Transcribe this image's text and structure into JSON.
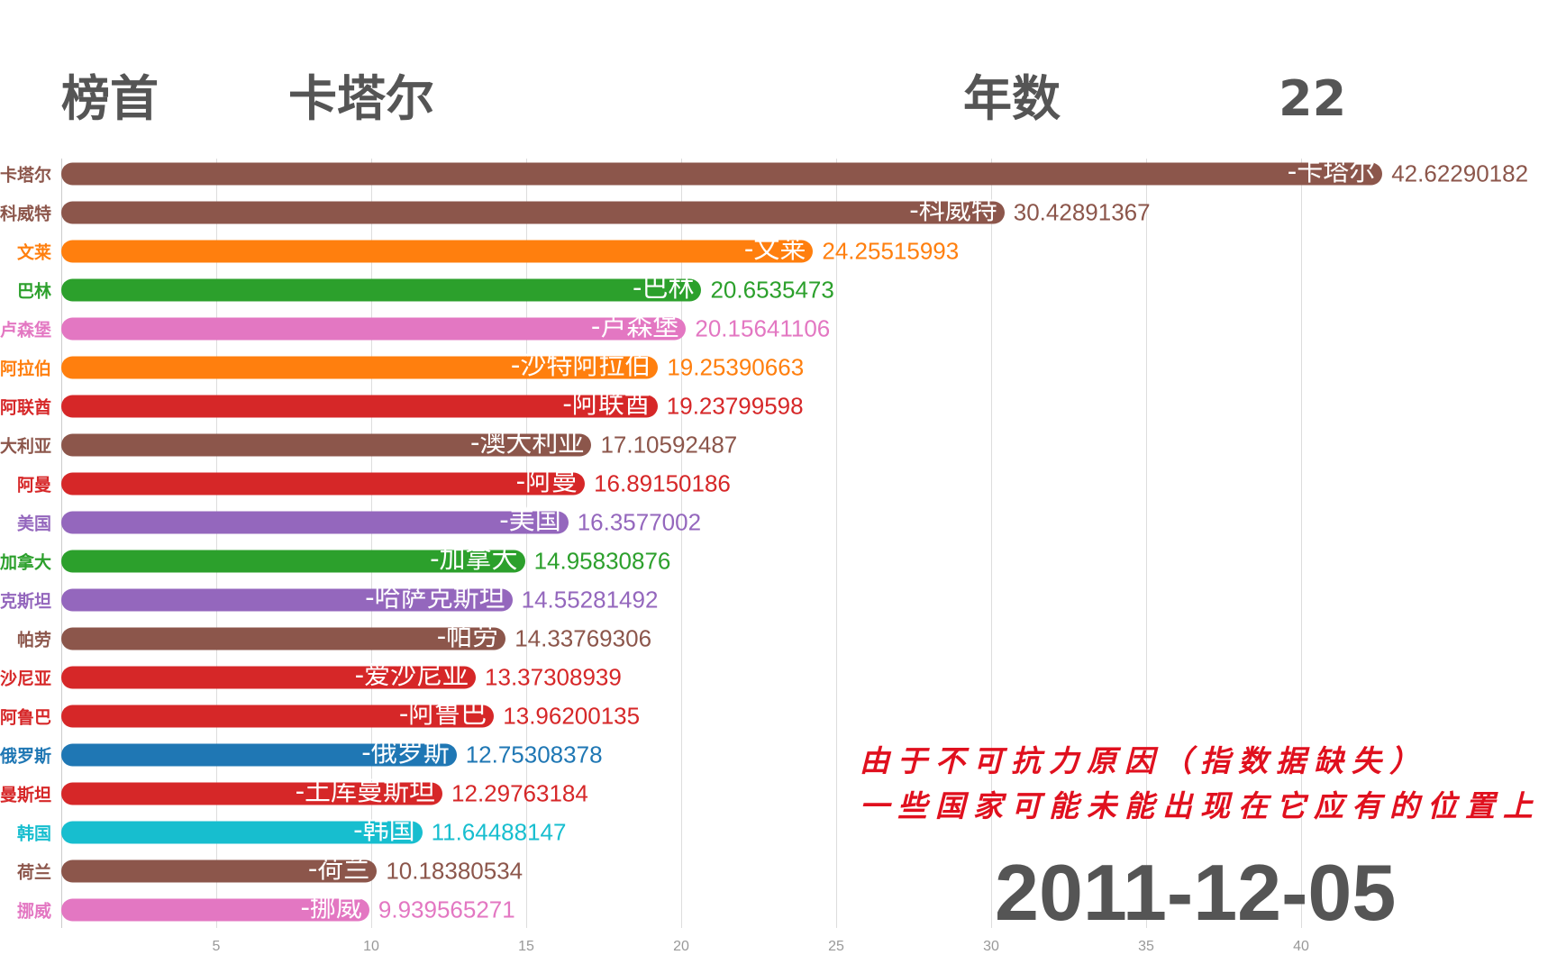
{
  "header": {
    "leader_label": "榜首",
    "leader_value": "卡塔尔",
    "year_label": "年数",
    "year_value": "22"
  },
  "note": {
    "line1": "由于不可抗力原因（指数据缺失）",
    "line2": "一些国家可能未能出现在它应有的位置上"
  },
  "date": "2011-12-05",
  "chart_data": {
    "type": "bar",
    "orientation": "horizontal",
    "xlim": [
      0,
      45
    ],
    "xticks": [
      5,
      10,
      15,
      20,
      25,
      30,
      35,
      40
    ],
    "grid": true,
    "categories": [
      "卡塔尔",
      "科威特",
      "文莱",
      "巴林",
      "卢森堡",
      "沙特阿拉伯",
      "阿联酋",
      "澳大利亚",
      "阿曼",
      "美国",
      "加拿大",
      "哈萨克斯坦",
      "帕劳",
      "爱沙尼亚",
      "阿鲁巴",
      "俄罗斯",
      "土库曼斯坦",
      "韩国",
      "荷兰",
      "挪威"
    ],
    "axis_labels": [
      "卡塔尔",
      "科威特",
      "文莱",
      "巴林",
      "卢森堡",
      "阿拉伯",
      "阿联酋",
      "大利亚",
      "阿曼",
      "美国",
      "加拿大",
      "克斯坦",
      "帕劳",
      "沙尼亚",
      "阿鲁巴",
      "俄罗斯",
      "曼斯坦",
      "韩国",
      "荷兰",
      "挪威"
    ],
    "bar_labels": [
      "-卡塔尔",
      "-科威特",
      "-文莱",
      "-巴林",
      "-卢森堡",
      "-沙特阿拉伯",
      "-阿联酋",
      "-澳大利亚",
      "-阿曼",
      "-美国",
      "-加拿大",
      "-哈萨克斯坦",
      "-帕劳",
      "-爱沙尼亚",
      "-阿鲁巴",
      "-俄罗斯",
      "-土库曼斯坦",
      "-韩国",
      "-荷兰",
      "-挪威"
    ],
    "values": [
      42.62290182,
      30.42891367,
      24.25515993,
      20.6535473,
      20.15641106,
      19.25390663,
      19.23799598,
      17.10592487,
      16.89150186,
      16.3577002,
      14.95830876,
      14.55281492,
      14.33769306,
      13.37308939,
      13.96200135,
      12.75308378,
      12.29763184,
      11.64488147,
      10.18380534,
      9.939565271
    ],
    "value_labels": [
      "42.62290182",
      "30.42891367",
      "24.25515993",
      "20.6535473",
      "20.15641106",
      "19.25390663",
      "19.23799598",
      "17.10592487",
      "16.89150186",
      "16.3577002",
      "14.95830876",
      "14.55281492",
      "14.33769306",
      "13.37308939",
      "13.96200135",
      "12.75308378",
      "12.29763184",
      "11.64488147",
      "10.18380534",
      "9.939565271"
    ],
    "colors": [
      "#8c564b",
      "#8c564b",
      "#ff7f0e",
      "#2ca02c",
      "#e377c2",
      "#ff7f0e",
      "#d62728",
      "#8c564b",
      "#d62728",
      "#9467bd",
      "#2ca02c",
      "#9467bd",
      "#8c564b",
      "#d62728",
      "#d62728",
      "#1f77b4",
      "#d62728",
      "#17becf",
      "#8c564b",
      "#e377c2"
    ]
  }
}
